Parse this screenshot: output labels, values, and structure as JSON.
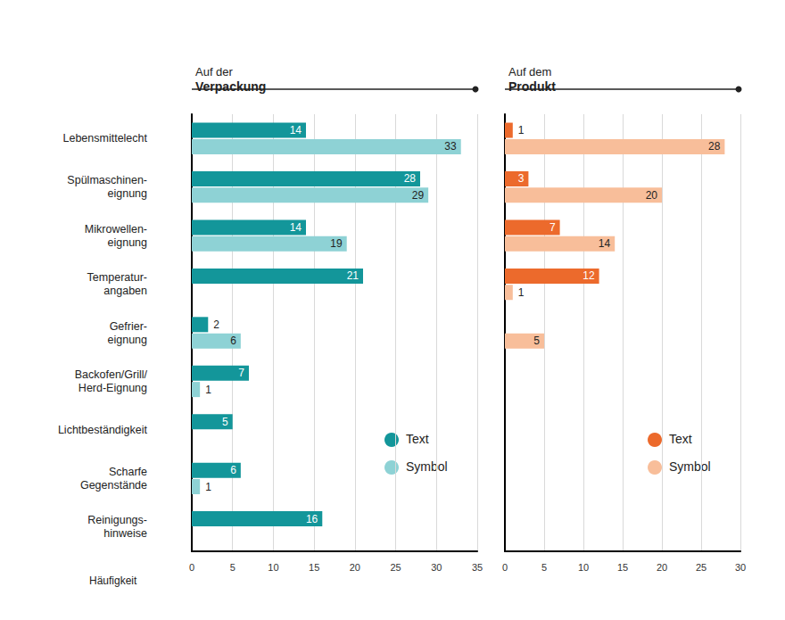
{
  "chart_data": [
    {
      "type": "bar",
      "orientation": "horizontal",
      "title": "Auf der\nVerpackung",
      "categories": [
        "Lebensmittelecht",
        "Spülmaschinen-\neignung",
        "Mikrowellen-\neignung",
        "Temperatur-\nangaben",
        "Gefrier-\neignung",
        "Backofen/Grill/\nHerd-Eignung",
        "Lichtbeständigkeit",
        "Scharfe\nGegenstände",
        "Reinigungs-\nhinweise"
      ],
      "series": [
        {
          "name": "Text",
          "color": "#13969a",
          "values": [
            14,
            28,
            14,
            21,
            2,
            7,
            5,
            6,
            16
          ]
        },
        {
          "name": "Symbol",
          "color": "#8ed2d5",
          "values": [
            33,
            29,
            19,
            null,
            6,
            1,
            null,
            1,
            null
          ]
        }
      ],
      "x_label": "Häufigkeit",
      "xlim": [
        0,
        35
      ],
      "xticks": [
        0,
        5,
        10,
        15,
        20,
        25,
        30,
        35
      ],
      "grid": true,
      "data_labels": true
    },
    {
      "type": "bar",
      "orientation": "horizontal",
      "title": "Auf dem\nProdukt",
      "categories": [
        "Lebensmittelecht",
        "Spülmaschinen-\neignung",
        "Mikrowellen-\neignung",
        "Temperatur-\nangaben",
        "Gefrier-\neignung",
        "Backofen/Grill/\nHerd-Eignung",
        "Lichtbeständigkeit",
        "Scharfe\nGegenstände",
        "Reinigungs-\nhinweise"
      ],
      "series": [
        {
          "name": "Text",
          "color": "#ec6a2c",
          "values": [
            1,
            3,
            7,
            12,
            null,
            null,
            null,
            null,
            null
          ]
        },
        {
          "name": "Symbol",
          "color": "#f8be9a",
          "values": [
            28,
            20,
            14,
            1,
            5,
            null,
            null,
            null,
            null
          ]
        }
      ],
      "xlim": [
        0,
        30
      ],
      "xticks": [
        0,
        5,
        10,
        15,
        20,
        25,
        30
      ],
      "grid": true,
      "data_labels": true,
      "tick_labels": "x"
    }
  ]
}
